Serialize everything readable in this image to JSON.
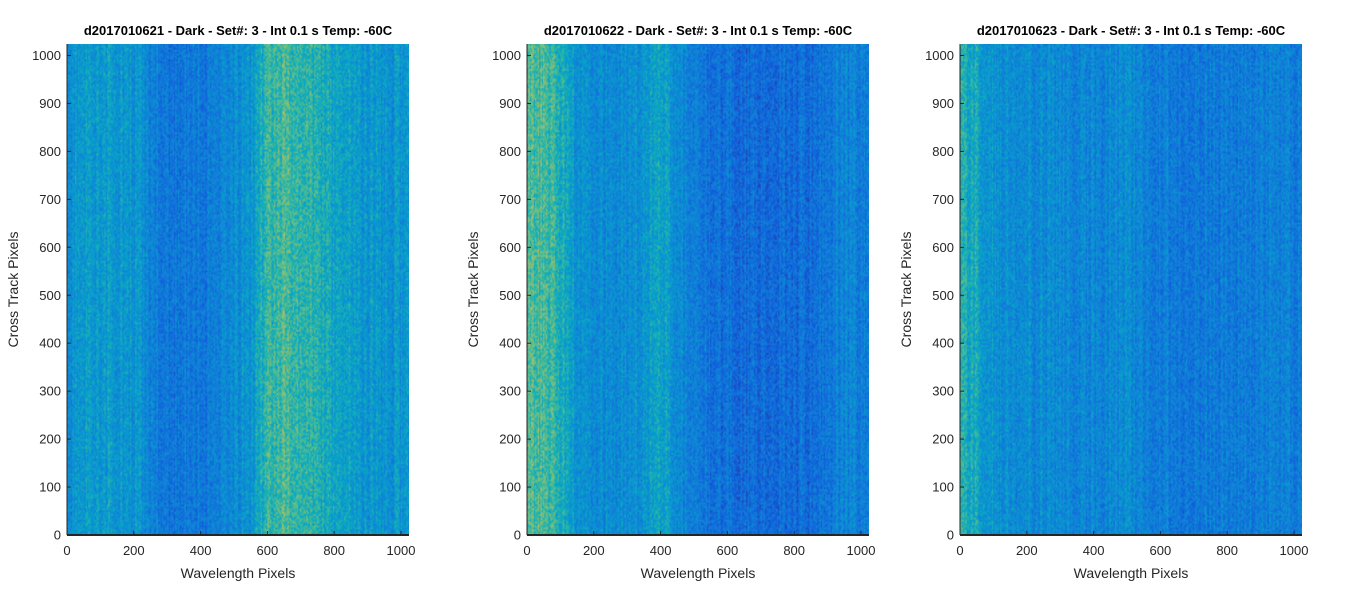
{
  "chart_data": [
    {
      "type": "heatmap",
      "title": "d2017010621 - Dark - Set#: 3 - Int 0.1 s Temp: -60C",
      "xlabel": "Wavelength Pixels",
      "ylabel": "Cross Track Pixels",
      "xlim": [
        0,
        1024
      ],
      "ylim": [
        0,
        1024
      ],
      "xticks": [
        0,
        200,
        400,
        600,
        800,
        1000
      ],
      "yticks": [
        0,
        100,
        200,
        300,
        400,
        500,
        600,
        700,
        800,
        900,
        1000
      ],
      "colormap": "parula",
      "column_intensity_profile": {
        "x": [
          0,
          100,
          200,
          250,
          300,
          400,
          500,
          560,
          600,
          650,
          700,
          750,
          800,
          850,
          900,
          960,
          1024
        ],
        "value": [
          0.42,
          0.44,
          0.43,
          0.35,
          0.28,
          0.3,
          0.36,
          0.45,
          0.58,
          0.62,
          0.6,
          0.56,
          0.5,
          0.46,
          0.42,
          0.4,
          0.44
        ]
      }
    },
    {
      "type": "heatmap",
      "title": "d2017010622 - Dark - Set#: 3 - Int 0.1 s Temp: -60C",
      "xlabel": "Wavelength Pixels",
      "ylabel": "Cross Track Pixels",
      "xlim": [
        0,
        1024
      ],
      "ylim": [
        0,
        1024
      ],
      "xticks": [
        0,
        200,
        400,
        600,
        800,
        1000
      ],
      "yticks": [
        0,
        100,
        200,
        300,
        400,
        500,
        600,
        700,
        800,
        900,
        1000
      ],
      "colormap": "parula",
      "column_intensity_profile": {
        "x": [
          0,
          50,
          100,
          150,
          200,
          300,
          380,
          420,
          460,
          520,
          600,
          700,
          800,
          880,
          950,
          1024
        ],
        "value": [
          0.62,
          0.62,
          0.55,
          0.4,
          0.36,
          0.38,
          0.46,
          0.46,
          0.34,
          0.26,
          0.24,
          0.22,
          0.22,
          0.26,
          0.34,
          0.3
        ]
      }
    },
    {
      "type": "heatmap",
      "title": "d2017010623 - Dark - Set#: 3 - Int 0.1 s Temp: -60C",
      "xlabel": "Wavelength Pixels",
      "ylabel": "Cross Track Pixels",
      "xlim": [
        0,
        1024
      ],
      "ylim": [
        0,
        1024
      ],
      "xticks": [
        0,
        200,
        400,
        600,
        800,
        1000
      ],
      "yticks": [
        0,
        100,
        200,
        300,
        400,
        500,
        600,
        700,
        800,
        900,
        1000
      ],
      "colormap": "parula",
      "column_intensity_profile": {
        "x": [
          0,
          30,
          80,
          150,
          250,
          400,
          500,
          600,
          700,
          800,
          900,
          1000,
          1024
        ],
        "value": [
          0.55,
          0.52,
          0.42,
          0.38,
          0.36,
          0.34,
          0.36,
          0.32,
          0.3,
          0.3,
          0.3,
          0.3,
          0.3
        ]
      }
    }
  ]
}
